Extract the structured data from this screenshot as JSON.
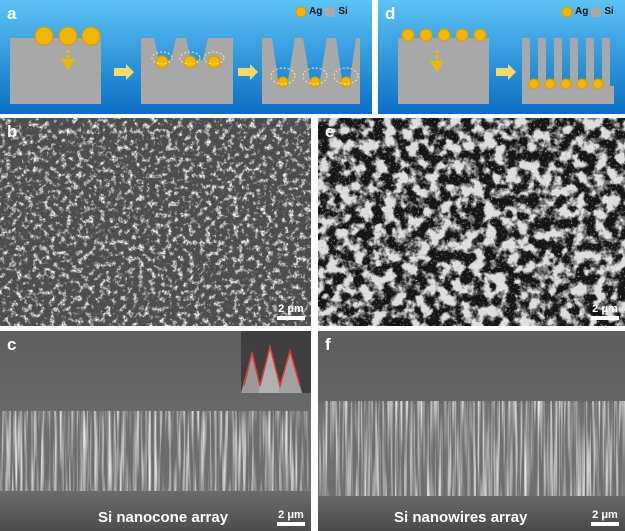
{
  "panels": {
    "a": {
      "label": "a",
      "legend_ag": "Ag",
      "legend_si": "Si"
    },
    "d": {
      "label": "d",
      "legend_ag": "Ag",
      "legend_si": "Si"
    },
    "b": {
      "label": "b",
      "scale": "2 μm"
    },
    "e": {
      "label": "e",
      "scale": "2 μm"
    },
    "c": {
      "label": "c",
      "scale": "2 μm",
      "caption": "Si nanocone array"
    },
    "f": {
      "label": "f",
      "scale": "2 μm",
      "caption": "Si nanowires array"
    }
  },
  "colors": {
    "background_blue": "#1a8ad6",
    "silicon": "#a8a8a8",
    "silver": "#f2b705",
    "arrow": "#f5d96b"
  }
}
